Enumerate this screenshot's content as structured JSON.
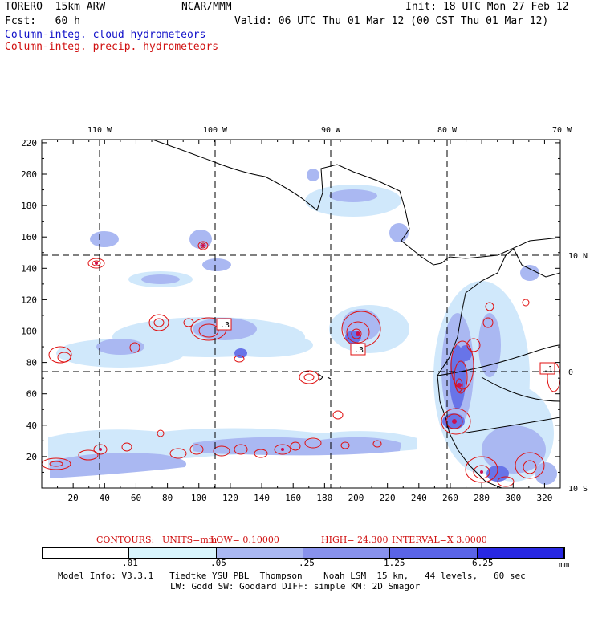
{
  "header": {
    "model": "TORERO  15km ARW",
    "org": "NCAR/MMM",
    "init": "Init: 18 UTC Mon 27 Feb 12",
    "fcst": "Fcst:   60 h",
    "valid": "Valid: 06 UTC Thu 01 Mar 12 (00 CST Thu 01 Mar 12)",
    "field1": "Column-integ. cloud hydrometeors",
    "field2": "Column-integ. precip. hydrometeors"
  },
  "axes": {
    "lon_labels": [
      "110 W",
      "100 W",
      "90 W",
      "80 W",
      "70 W"
    ],
    "lat_labels": [
      "10 N",
      "0",
      "10 S"
    ],
    "x_ticks": [
      "20",
      "40",
      "60",
      "80",
      "100",
      "120",
      "140",
      "160",
      "180",
      "200",
      "220",
      "240",
      "260",
      "280",
      "300",
      "320"
    ],
    "y_ticks": [
      "20",
      "40",
      "60",
      "80",
      "100",
      "120",
      "140",
      "160",
      "180",
      "200",
      "220"
    ]
  },
  "contour_labels": [
    ".3",
    ".3",
    ".3",
    ".1"
  ],
  "contour_info": {
    "contours": "CONTOURS:",
    "units": "UNITS=mm",
    "low": "LOW= 0.10000",
    "high": "HIGH=  24.300",
    "interval": "INTERVAL=X  3.0000"
  },
  "colorbar": {
    "ticks": [
      ".01",
      ".05",
      ".25",
      "1.25",
      "6.25"
    ],
    "unit": "mm",
    "colors": [
      "#ffffff",
      "#d8f4fc",
      "#aab8f2",
      "#8892ec",
      "#5a64e6",
      "#2828e2"
    ]
  },
  "footer": {
    "line1": "Model Info: V3.3.1   Tiedtke YSU PBL  Thompson    Noah LSM  15 km,   44 levels,   60 sec",
    "line2": "LW: Godd SW: Goddard DIFF: simple KM: 2D Smagor"
  }
}
